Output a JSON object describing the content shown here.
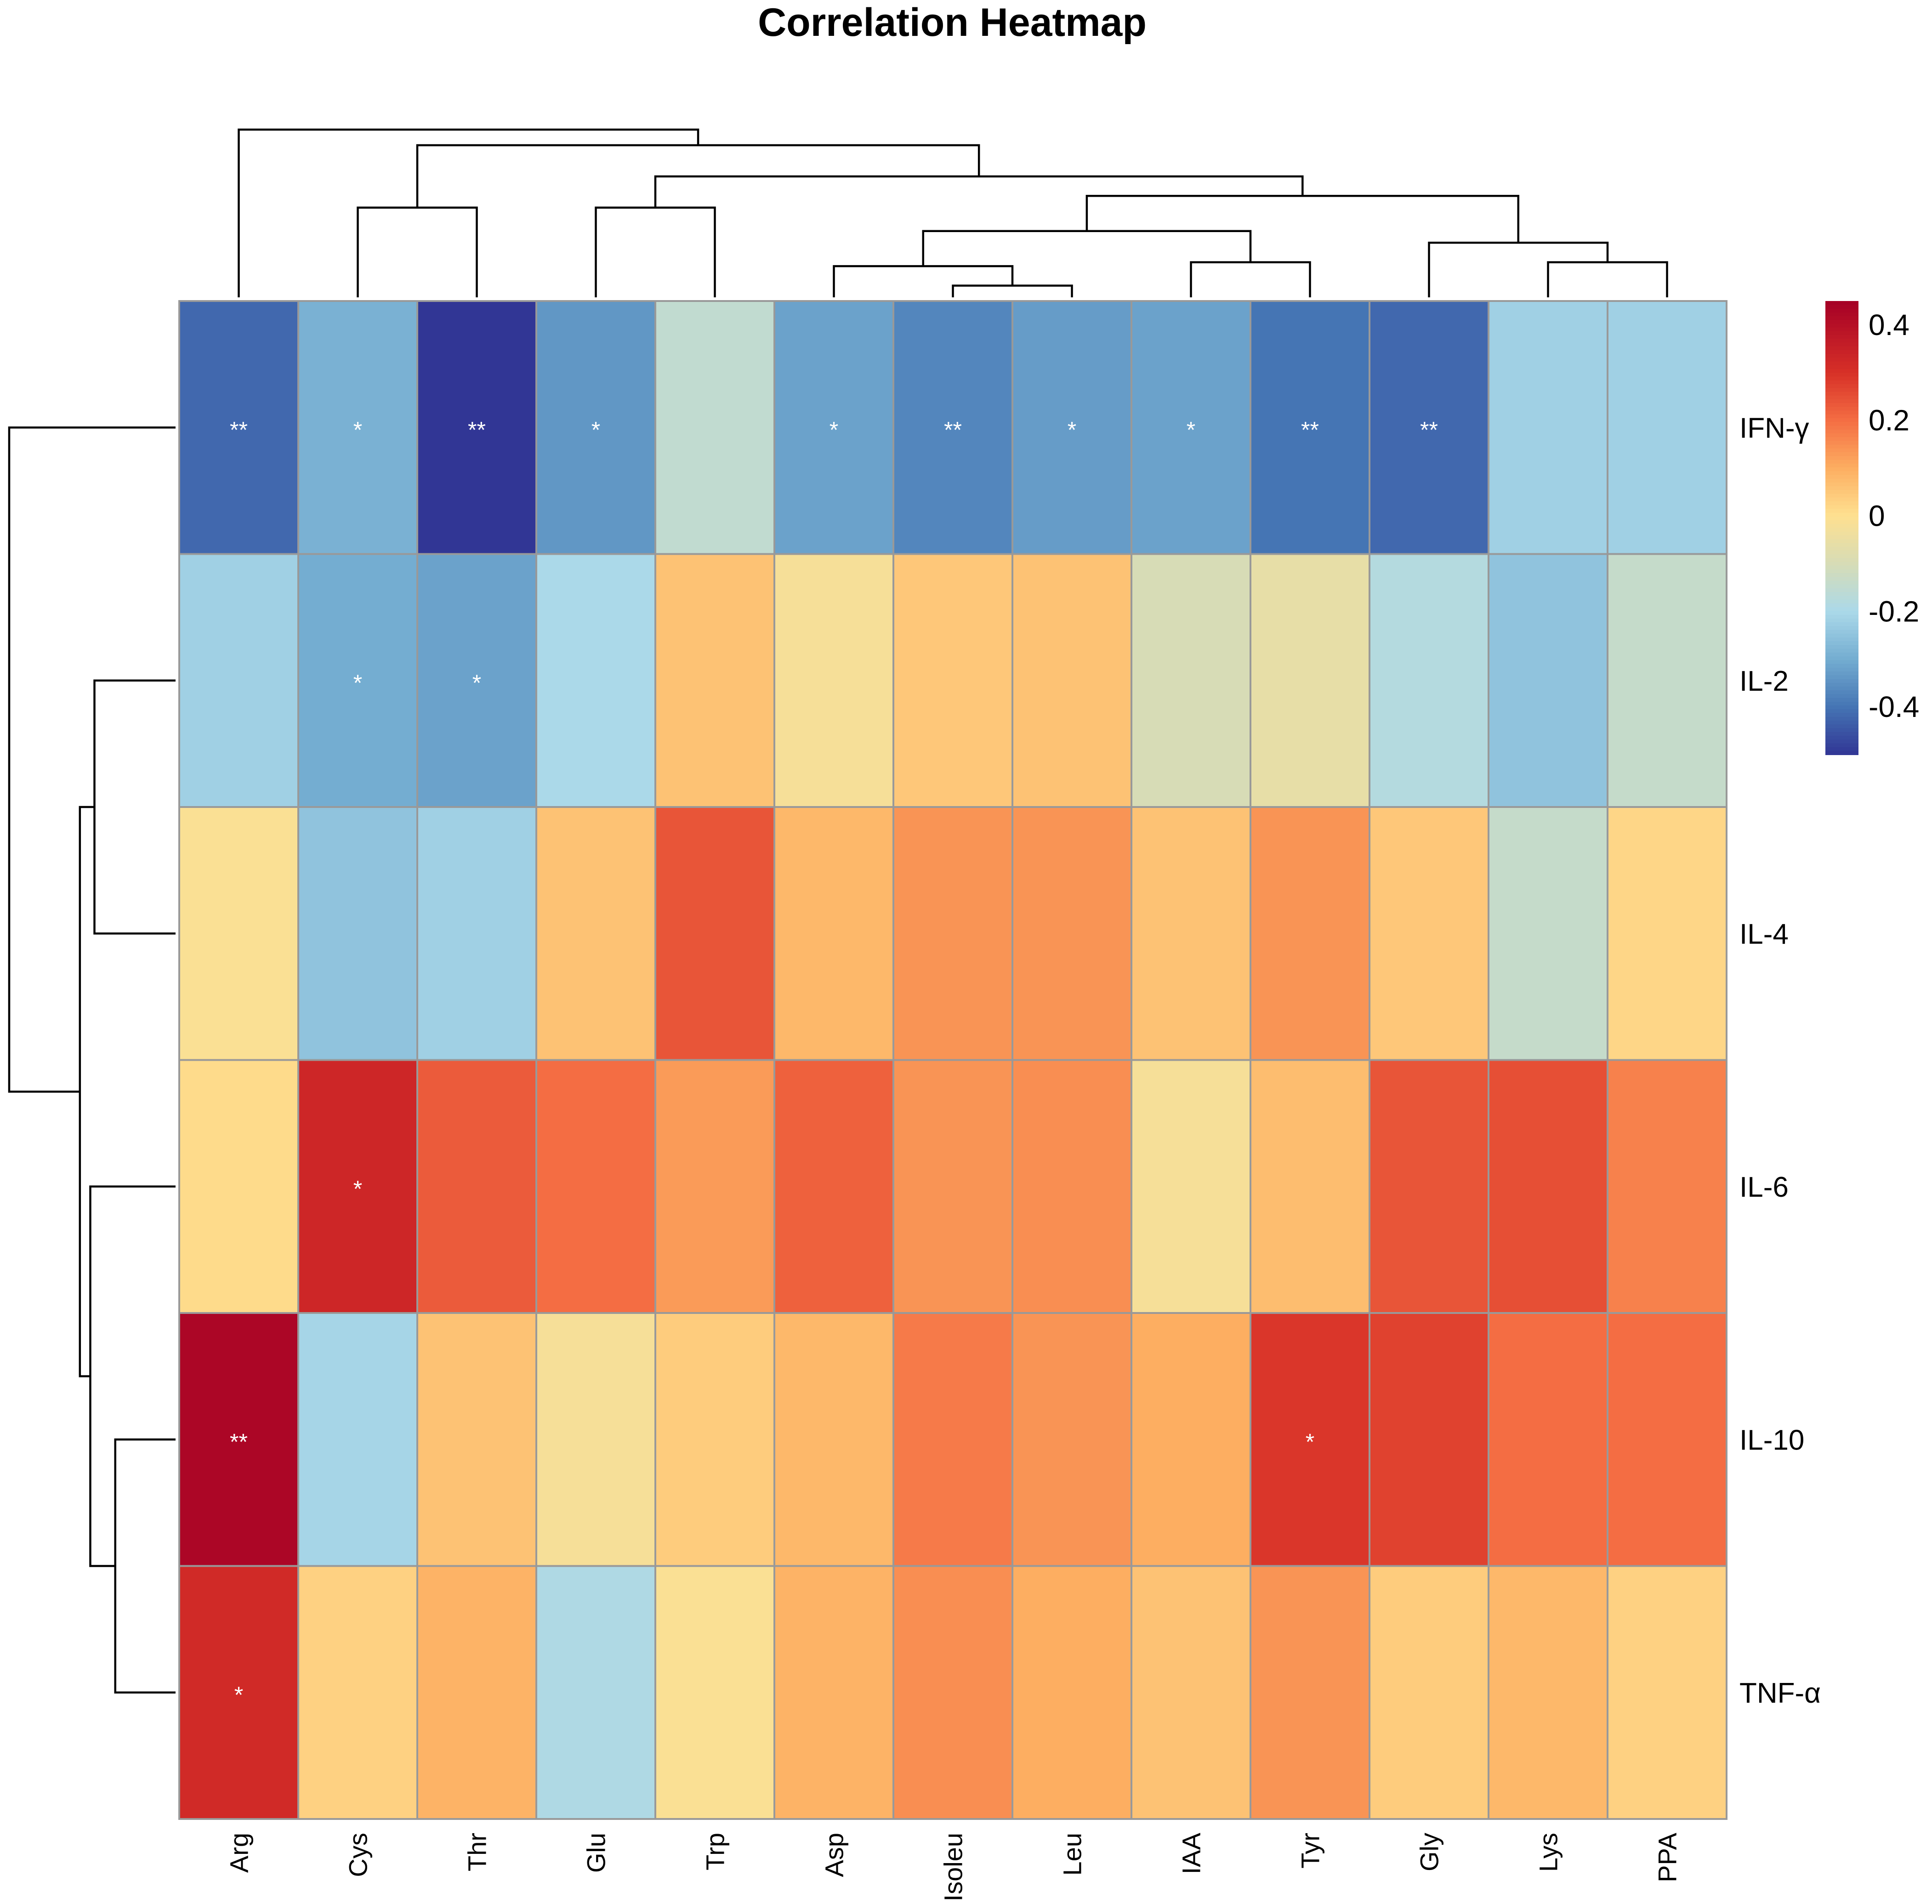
{
  "chart_data": {
    "type": "heatmap",
    "title": "Correlation Heatmap",
    "columns": [
      "Arg",
      "Cys",
      "Thr",
      "Glu",
      "Trp",
      "Asp",
      "Isoleu",
      "Leu",
      "IAA",
      "Tyr",
      "Gly",
      "Lys",
      "PPA"
    ],
    "rows": [
      "IFN-γ",
      "IL-2",
      "IL-4",
      "IL-6",
      "IL-10",
      "TNF-α"
    ],
    "values": [
      [
        -0.42,
        -0.29,
        -0.5,
        -0.34,
        -0.15,
        -0.32,
        -0.37,
        -0.33,
        -0.32,
        -0.4,
        -0.42,
        -0.22,
        -0.22
      ],
      [
        -0.22,
        -0.3,
        -0.32,
        -0.2,
        0.06,
        -0.02,
        0.05,
        0.06,
        -0.1,
        -0.06,
        -0.18,
        -0.25,
        -0.14
      ],
      [
        -0.01,
        -0.25,
        -0.22,
        0.06,
        0.24,
        0.08,
        0.14,
        0.14,
        0.06,
        0.14,
        0.05,
        -0.14,
        0.02
      ],
      [
        0.01,
        0.33,
        0.23,
        0.2,
        0.13,
        0.22,
        0.14,
        0.15,
        -0.02,
        0.07,
        0.24,
        0.25,
        0.17
      ],
      [
        0.43,
        -0.21,
        0.06,
        -0.02,
        0.04,
        0.08,
        0.18,
        0.14,
        0.1,
        0.29,
        0.27,
        0.2,
        0.2
      ],
      [
        0.32,
        0.03,
        0.09,
        -0.19,
        -0.01,
        0.09,
        0.15,
        0.1,
        0.06,
        0.14,
        0.04,
        0.08,
        0.03
      ]
    ],
    "significance": [
      [
        "**",
        "*",
        "**",
        "*",
        "",
        "*",
        "**",
        "*",
        "*",
        "**",
        "**",
        "",
        ""
      ],
      [
        "",
        "*",
        "*",
        "",
        "",
        "",
        "",
        "",
        "",
        "",
        "",
        "",
        ""
      ],
      [
        "",
        "",
        "",
        "",
        "",
        "",
        "",
        "",
        "",
        "",
        "",
        "",
        ""
      ],
      [
        "",
        "*",
        "",
        "",
        "",
        "",
        "",
        "",
        "",
        "",
        "",
        "",
        ""
      ],
      [
        "**",
        "",
        "",
        "",
        "",
        "",
        "",
        "",
        "",
        "*",
        "",
        "",
        ""
      ],
      [
        "*",
        "",
        "",
        "",
        "",
        "",
        "",
        "",
        "",
        "",
        "",
        "",
        ""
      ]
    ],
    "color_scale": {
      "min": -0.5,
      "max": 0.45,
      "ticks": [
        0.4,
        0.2,
        0,
        -0.2,
        -0.4
      ],
      "tick_labels": [
        "0.4",
        "0.2",
        "0",
        "-0.2",
        "-0.4"
      ],
      "stops": [
        {
          "value": -0.5,
          "color": "#313695"
        },
        {
          "value": -0.4,
          "color": "#4575b4"
        },
        {
          "value": -0.3,
          "color": "#74add1"
        },
        {
          "value": -0.2,
          "color": "#abd9e9"
        },
        {
          "value": -0.1,
          "color": "#d7dcb6"
        },
        {
          "value": 0.0,
          "color": "#fee090"
        },
        {
          "value": 0.1,
          "color": "#fdae61"
        },
        {
          "value": 0.2,
          "color": "#f46d43"
        },
        {
          "value": 0.3,
          "color": "#d73027"
        },
        {
          "value": 0.45,
          "color": "#a50026"
        }
      ]
    },
    "column_dendrogram": [
      {
        "a": 6,
        "b": 7,
        "h": 0.3
      },
      {
        "a": 5,
        "b": 13,
        "h": 0.8
      },
      {
        "a": 8,
        "b": 9,
        "h": 0.9
      },
      {
        "a": 11,
        "b": 12,
        "h": 0.9
      },
      {
        "a": 10,
        "b": 16,
        "h": 1.4
      },
      {
        "a": 14,
        "b": 15,
        "h": 1.7
      },
      {
        "a": 1,
        "b": 2,
        "h": 2.3
      },
      {
        "a": 3,
        "b": 4,
        "h": 2.3
      },
      {
        "a": 17,
        "b": 18,
        "h": 2.6
      },
      {
        "a": 20,
        "b": 21,
        "h": 3.1
      },
      {
        "a": 19,
        "b": 22,
        "h": 3.9
      },
      {
        "a": 0,
        "b": 23,
        "h": 4.3
      }
    ],
    "row_dendrogram": [
      {
        "a": 4,
        "b": 5,
        "h": 1.45
      },
      {
        "a": 1,
        "b": 2,
        "h": 1.95
      },
      {
        "a": 3,
        "b": 6,
        "h": 2.05
      },
      {
        "a": 7,
        "b": 8,
        "h": 2.3
      },
      {
        "a": 0,
        "b": 9,
        "h": 4.0
      }
    ],
    "legend_position": "right"
  }
}
